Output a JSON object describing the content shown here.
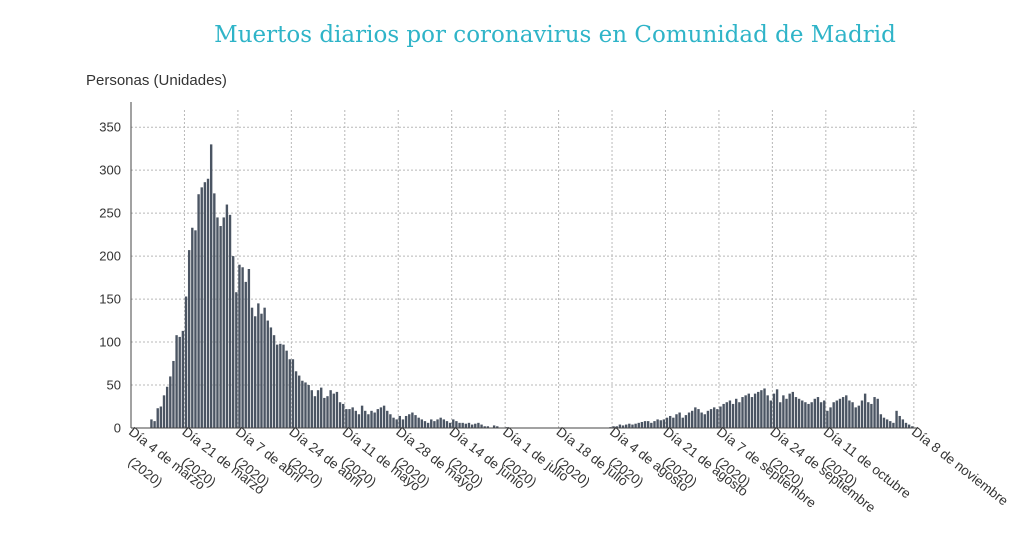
{
  "chart_data": {
    "type": "bar",
    "title": "Muertos diarios por coronavirus en Comunidad de Madrid",
    "ylabel": "Personas (Unidades)",
    "xlabel": "",
    "ylim": [
      0,
      370
    ],
    "yticks": [
      0,
      50,
      100,
      150,
      200,
      250,
      300,
      350
    ],
    "grid": true,
    "legend": "none",
    "bar_color": "#4b5563",
    "title_color": "#2fb4c8",
    "x_start": "4 de marzo 2020",
    "x_tick_labels": [
      {
        "index": 0,
        "line1": "Día 4 de marzo",
        "line2": "(2020)"
      },
      {
        "index": 17,
        "line1": "Día 21 de marzo",
        "line2": "(2020)"
      },
      {
        "index": 34,
        "line1": "Día 7 de abril",
        "line2": "(2020)"
      },
      {
        "index": 51,
        "line1": "Día 24 de abril",
        "line2": "(2020)"
      },
      {
        "index": 68,
        "line1": "Día 11 de mayo",
        "line2": "(2020)"
      },
      {
        "index": 85,
        "line1": "Día 28 de mayo",
        "line2": "(2020)"
      },
      {
        "index": 102,
        "line1": "Día 14 de junio",
        "line2": "(2020)"
      },
      {
        "index": 119,
        "line1": "Día 1 de julio",
        "line2": "(2020)"
      },
      {
        "index": 136,
        "line1": "Día 18 de julio",
        "line2": "(2020)"
      },
      {
        "index": 153,
        "line1": "Día 4 de agosto",
        "line2": "(2020)"
      },
      {
        "index": 170,
        "line1": "Día 21 de agosto",
        "line2": "(2020)"
      },
      {
        "index": 187,
        "line1": "Día 7 de septiembre",
        "line2": "(2020)"
      },
      {
        "index": 204,
        "line1": "Día 24 de septiembre",
        "line2": "(2020)"
      },
      {
        "index": 221,
        "line1": "Día 11 de octubre",
        "line2": "(2020)"
      },
      {
        "index": 249,
        "line1": "Día 8 de noviembre",
        "line2": ""
      }
    ],
    "values": [
      0,
      0,
      0,
      0,
      0,
      0,
      10,
      8,
      23,
      25,
      38,
      48,
      60,
      78,
      108,
      106,
      113,
      153,
      207,
      233,
      230,
      272,
      280,
      286,
      290,
      330,
      273,
      245,
      235,
      245,
      260,
      248,
      200,
      158,
      190,
      187,
      170,
      185,
      140,
      130,
      145,
      133,
      140,
      125,
      117,
      108,
      97,
      98,
      97,
      90,
      80,
      80,
      66,
      61,
      55,
      53,
      50,
      44,
      37,
      44,
      47,
      35,
      37,
      44,
      40,
      42,
      30,
      28,
      22,
      22,
      24,
      20,
      16,
      26,
      20,
      16,
      20,
      18,
      22,
      24,
      26,
      20,
      16,
      12,
      10,
      14,
      10,
      14,
      16,
      18,
      15,
      12,
      10,
      8,
      6,
      10,
      8,
      10,
      12,
      10,
      8,
      6,
      10,
      8,
      6,
      6,
      5,
      6,
      4,
      5,
      6,
      4,
      2,
      2,
      0,
      3,
      2,
      0,
      0,
      1,
      0,
      0,
      0,
      0,
      0,
      0,
      0,
      0,
      0,
      0,
      0,
      0,
      0,
      0,
      0,
      0,
      0,
      0,
      0,
      0,
      0,
      0,
      0,
      0,
      0,
      0,
      0,
      0,
      0,
      0,
      0,
      0,
      1,
      2,
      2,
      4,
      3,
      4,
      5,
      4,
      5,
      6,
      7,
      8,
      8,
      6,
      8,
      10,
      9,
      10,
      12,
      14,
      12,
      16,
      18,
      12,
      15,
      18,
      20,
      24,
      22,
      18,
      16,
      20,
      22,
      24,
      22,
      25,
      28,
      30,
      32,
      28,
      34,
      30,
      36,
      38,
      40,
      36,
      40,
      42,
      44,
      46,
      38,
      32,
      40,
      45,
      30,
      38,
      34,
      40,
      42,
      36,
      34,
      32,
      30,
      28,
      30,
      34,
      36,
      30,
      32,
      20,
      24,
      30,
      32,
      34,
      36,
      38,
      32,
      30,
      24,
      26,
      32,
      40,
      30,
      28,
      36,
      34,
      16,
      12,
      10,
      8,
      6,
      20,
      14,
      10,
      6,
      4,
      2,
      0
    ]
  }
}
